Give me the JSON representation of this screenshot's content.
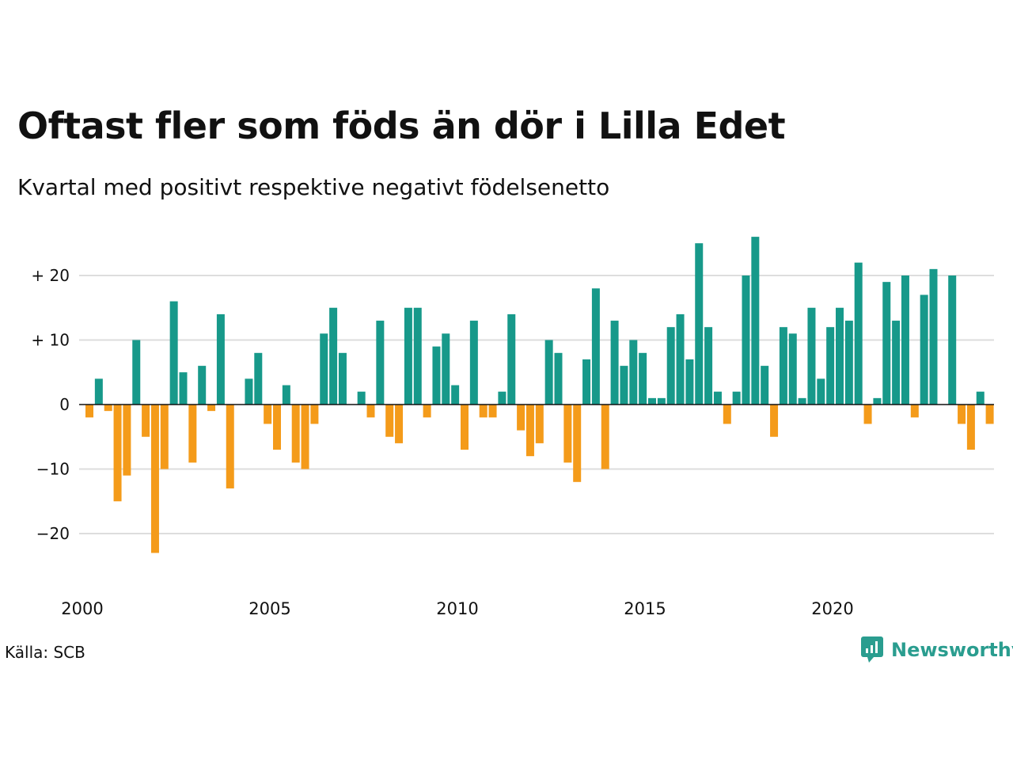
{
  "title": "Oftast fler som föds än dör i Lilla Edet",
  "subtitle": "Kvartal med positivt respektive negativt födelsenetto",
  "source": "Källa: SCB",
  "brand": "Newsworthy",
  "colors": {
    "positive": "#17998a",
    "negative": "#f49b1a",
    "grid": "#dddddd",
    "zero": "#111111"
  },
  "chart_data": {
    "type": "bar",
    "start_year": 2000,
    "periods_per_year": 4,
    "ylim": [
      -27,
      29
    ],
    "yticks": [
      {
        "value": 20,
        "label": "+ 20"
      },
      {
        "value": 10,
        "label": "+ 10"
      },
      {
        "value": 0,
        "label": "0"
      },
      {
        "value": -10,
        "label": "−10"
      },
      {
        "value": -20,
        "label": "−20"
      }
    ],
    "xticks": [
      {
        "year": 2000,
        "label": "2000"
      },
      {
        "year": 2005,
        "label": "2005"
      },
      {
        "year": 2010,
        "label": "2010"
      },
      {
        "year": 2015,
        "label": "2015"
      },
      {
        "year": 2020,
        "label": "2020"
      }
    ],
    "values": [
      -2,
      4,
      -1,
      -15,
      -11,
      10,
      -5,
      -23,
      -10,
      16,
      5,
      -9,
      6,
      -1,
      14,
      -13,
      0,
      4,
      8,
      -3,
      -7,
      3,
      -9,
      -10,
      -3,
      11,
      15,
      8,
      0,
      2,
      -2,
      13,
      -5,
      -6,
      15,
      15,
      -2,
      9,
      11,
      3,
      -7,
      13,
      -2,
      -2,
      2,
      14,
      -4,
      -8,
      -6,
      10,
      8,
      -9,
      -12,
      7,
      18,
      -10,
      13,
      6,
      10,
      8,
      1,
      1,
      12,
      14,
      7,
      25,
      12,
      2,
      -3,
      2,
      20,
      26,
      6,
      -5,
      12,
      11,
      1,
      15,
      4,
      12,
      15,
      13,
      22,
      -3,
      1,
      19,
      13,
      20,
      -2,
      17,
      21,
      0,
      20,
      -3,
      -7,
      2,
      -3
    ]
  }
}
